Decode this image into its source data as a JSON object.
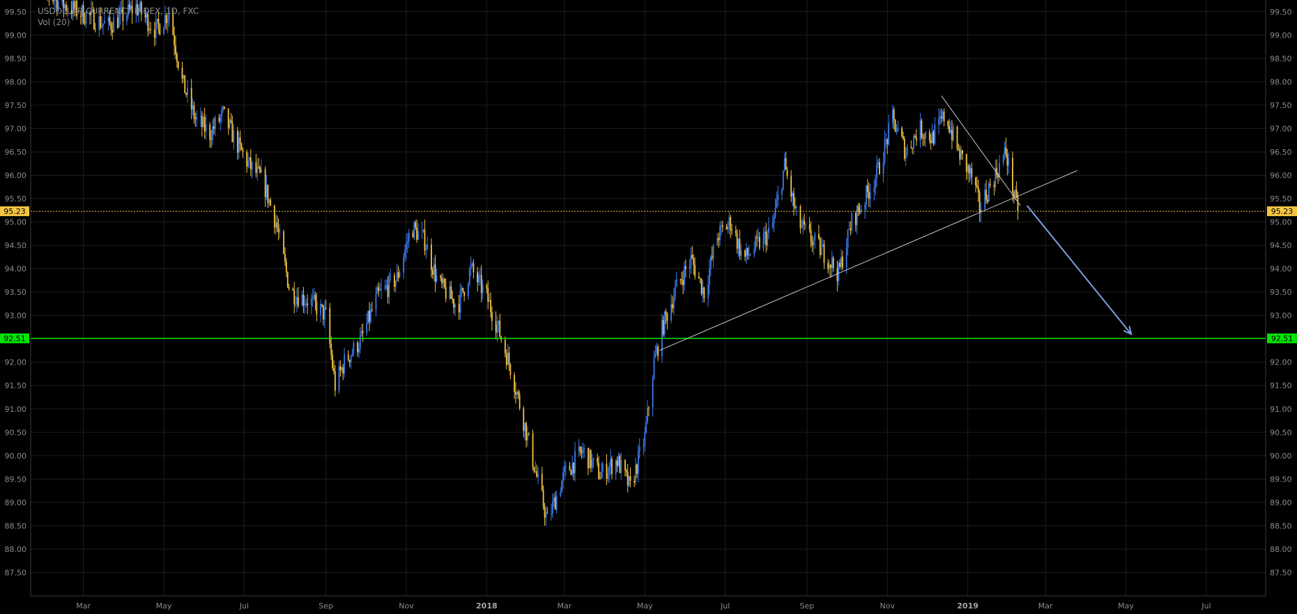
{
  "chart_data": {
    "type": "candlestick",
    "title": "USDOLLAR CURRENCY INDEX, 1D, FXC",
    "indicator": "Vol (20)",
    "ylim": [
      87.0,
      99.75
    ],
    "y_ticks": [
      "87.50",
      "88.00",
      "88.50",
      "89.00",
      "89.50",
      "90.00",
      "90.50",
      "91.00",
      "91.50",
      "92.00",
      "92.50",
      "93.00",
      "93.50",
      "94.00",
      "94.50",
      "95.00",
      "95.50",
      "96.00",
      "96.50",
      "97.00",
      "97.50",
      "98.00",
      "98.50",
      "99.00",
      "99.50"
    ],
    "x_ticks": [
      {
        "label": "Mar",
        "bold": false,
        "date": "2017-03-01"
      },
      {
        "label": "May",
        "bold": false,
        "date": "2017-05-01"
      },
      {
        "label": "Jul",
        "bold": false,
        "date": "2017-07-01"
      },
      {
        "label": "Sep",
        "bold": false,
        "date": "2017-09-01"
      },
      {
        "label": "Nov",
        "bold": false,
        "date": "2017-11-01"
      },
      {
        "label": "2018",
        "bold": true,
        "date": "2018-01-01"
      },
      {
        "label": "Mar",
        "bold": false,
        "date": "2018-03-01"
      },
      {
        "label": "May",
        "bold": false,
        "date": "2018-05-01"
      },
      {
        "label": "Jul",
        "bold": false,
        "date": "2018-07-01"
      },
      {
        "label": "Sep",
        "bold": false,
        "date": "2018-09-01"
      },
      {
        "label": "Nov",
        "bold": false,
        "date": "2018-11-01"
      },
      {
        "label": "2019",
        "bold": true,
        "date": "2019-01-01"
      },
      {
        "label": "Mar",
        "bold": false,
        "date": "2019-03-01"
      },
      {
        "label": "May",
        "bold": false,
        "date": "2019-05-01"
      },
      {
        "label": "Jul",
        "bold": false,
        "date": "2019-07-01"
      }
    ],
    "x_range": [
      "2017-01-20",
      "2019-08-15"
    ],
    "price_path": [
      [
        "2017-01-20",
        100.2
      ],
      [
        "2017-02-10",
        99.7
      ],
      [
        "2017-03-05",
        99.4
      ],
      [
        "2017-03-20",
        99.2
      ],
      [
        "2017-04-10",
        99.6
      ],
      [
        "2017-04-25",
        99.1
      ],
      [
        "2017-05-05",
        99.5
      ],
      [
        "2017-05-15",
        98.0
      ],
      [
        "2017-05-25",
        97.2
      ],
      [
        "2017-06-05",
        96.9
      ],
      [
        "2017-06-15",
        97.3
      ],
      [
        "2017-06-25",
        96.7
      ],
      [
        "2017-07-05",
        96.2
      ],
      [
        "2017-07-15",
        95.9
      ],
      [
        "2017-07-25",
        95.0
      ],
      [
        "2017-08-05",
        93.5
      ],
      [
        "2017-08-20",
        93.3
      ],
      [
        "2017-09-01",
        93.0
      ],
      [
        "2017-09-08",
        91.5
      ],
      [
        "2017-09-15",
        92.0
      ],
      [
        "2017-09-28",
        92.5
      ],
      [
        "2017-10-10",
        93.4
      ],
      [
        "2017-10-25",
        93.8
      ],
      [
        "2017-11-05",
        94.9
      ],
      [
        "2017-11-15",
        94.6
      ],
      [
        "2017-11-25",
        93.7
      ],
      [
        "2017-12-10",
        93.2
      ],
      [
        "2017-12-20",
        94.0
      ],
      [
        "2018-01-01",
        93.4
      ],
      [
        "2018-01-10",
        92.7
      ],
      [
        "2018-01-20",
        91.8
      ],
      [
        "2018-02-01",
        90.4
      ],
      [
        "2018-02-10",
        89.3
      ],
      [
        "2018-02-16",
        88.6
      ],
      [
        "2018-03-01",
        89.6
      ],
      [
        "2018-03-15",
        90.1
      ],
      [
        "2018-03-28",
        89.6
      ],
      [
        "2018-04-10",
        89.9
      ],
      [
        "2018-04-20",
        89.3
      ],
      [
        "2018-05-01",
        90.4
      ],
      [
        "2018-05-08",
        92.0
      ],
      [
        "2018-05-15",
        92.8
      ],
      [
        "2018-05-25",
        93.6
      ],
      [
        "2018-06-05",
        94.2
      ],
      [
        "2018-06-15",
        93.5
      ],
      [
        "2018-06-25",
        94.7
      ],
      [
        "2018-07-05",
        95.0
      ],
      [
        "2018-07-15",
        94.2
      ],
      [
        "2018-07-25",
        94.5
      ],
      [
        "2018-08-05",
        94.8
      ],
      [
        "2018-08-15",
        96.2
      ],
      [
        "2018-08-25",
        95.0
      ],
      [
        "2018-09-05",
        94.6
      ],
      [
        "2018-09-15",
        94.3
      ],
      [
        "2018-09-25",
        93.9
      ],
      [
        "2018-10-05",
        95.0
      ],
      [
        "2018-10-15",
        95.5
      ],
      [
        "2018-10-25",
        96.1
      ],
      [
        "2018-11-05",
        97.2
      ],
      [
        "2018-11-15",
        96.5
      ],
      [
        "2018-11-25",
        97.0
      ],
      [
        "2018-12-05",
        96.8
      ],
      [
        "2018-12-15",
        97.3
      ],
      [
        "2018-12-25",
        96.5
      ],
      [
        "2019-01-05",
        95.9
      ],
      [
        "2019-01-10",
        95.3
      ],
      [
        "2019-01-20",
        95.9
      ],
      [
        "2019-01-30",
        96.5
      ],
      [
        "2019-02-05",
        95.6
      ],
      [
        "2019-02-08",
        95.23
      ]
    ],
    "last_price": {
      "label": "95.23",
      "value": 95.23,
      "color": "#f5c542"
    },
    "support_level": {
      "label": "92.51",
      "value": 92.51,
      "color": "#00e600"
    },
    "drawings": [
      {
        "name": "rising-trendline",
        "from": [
          "2018-05-12",
          92.25
        ],
        "to": [
          "2019-03-25",
          96.1
        ],
        "color": "#c8c8c8"
      },
      {
        "name": "descending-trendline",
        "from": [
          "2018-12-12",
          97.7
        ],
        "to": [
          "2019-02-10",
          95.35
        ],
        "color": "#c8c8c8"
      },
      {
        "name": "projection-arrow",
        "from": [
          "2019-02-15",
          95.35
        ],
        "to": [
          "2019-05-05",
          92.6
        ],
        "color": "#7b9fe0"
      }
    ],
    "colors": {
      "up": "#3d7cf0",
      "down": "#f5c542",
      "grid": "#1e1e1e",
      "axis": "#8c8c8c",
      "background": "#000000"
    },
    "grid": true
  }
}
